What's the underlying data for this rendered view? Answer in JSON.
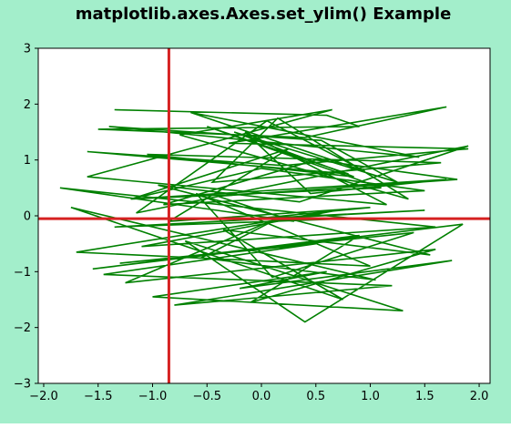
{
  "figure": {
    "background": "#a3eecb",
    "title": "matplotlib.axes.Axes.set_ylim() Example"
  },
  "chart_data": {
    "type": "line",
    "title": "matplotlib.axes.Axes.set_ylim() Example",
    "xlabel": "",
    "ylabel": "",
    "xlim": [
      -2.05,
      2.1
    ],
    "ylim": [
      -3,
      3
    ],
    "xticks": [
      -2.0,
      -1.5,
      -1.0,
      -0.5,
      0.0,
      0.5,
      1.0,
      1.5,
      2.0
    ],
    "xtick_labels": [
      "−2.0",
      "−1.5",
      "−1.0",
      "−0.5",
      "0.0",
      "0.5",
      "1.0",
      "1.5",
      "2.0"
    ],
    "yticks": [
      -3,
      -2,
      -1,
      0,
      1,
      2,
      3
    ],
    "ytick_labels": [
      "−3",
      "−2",
      "−1",
      "0",
      "1",
      "2",
      "3"
    ],
    "grid": false,
    "series": [
      {
        "color": "#008000",
        "x": [
          -1.35,
          0.6,
          0.9,
          -1.5,
          0.4,
          1.7,
          -0.3,
          1.9,
          0.2,
          -1.6,
          0.8,
          -0.5,
          1.1,
          -1.2,
          0.0,
          1.5,
          -0.9,
          0.5,
          1.8,
          -0.4,
          0.3,
          -1.85,
          1.6,
          -1.1,
          0.7,
          -1.7,
          1.0,
          -0.6,
          0.1,
          1.4,
          -1.3,
          0.5,
          -1.45,
          1.2,
          -0.8,
          1.75,
          -0.2,
          0.6,
          -1.0,
          1.3,
          -0.7,
          0.4,
          1.85,
          -1.55,
          0.9,
          -0.1,
          1.6,
          -1.25,
          0.2,
          -0.55,
          1.05,
          -1.75,
          0.75,
          -0.35,
          1.55,
          -0.95,
          0.35,
          1.9,
          -1.15,
          0.05,
          0.95,
          -0.65,
          1.45,
          -1.4,
          0.55,
          1.25,
          -0.25,
          0.85,
          -1.05,
          1.65,
          -0.45,
          0.15,
          1.35,
          -0.75,
          0.65,
          -1.6,
          1.15,
          -0.15,
          0.45,
          1.7,
          -1.2,
          0.25,
          -0.85,
          1.0,
          -0.05,
          1.5,
          -1.35,
          0.8
        ],
        "y": [
          1.9,
          1.8,
          1.6,
          1.55,
          1.4,
          1.95,
          1.3,
          1.2,
          0.9,
          1.15,
          0.75,
          1.6,
          0.5,
          0.3,
          0.85,
          0.45,
          0.2,
          1.0,
          0.65,
          0.35,
          -0.1,
          0.5,
          -0.2,
          -0.55,
          0.1,
          -0.65,
          -0.9,
          0.4,
          -1.1,
          -0.3,
          -0.85,
          -0.5,
          -1.05,
          -1.25,
          -1.6,
          -0.8,
          -1.3,
          -1.0,
          -1.45,
          -1.7,
          -0.45,
          -1.9,
          -0.15,
          -0.95,
          -0.35,
          -1.55,
          -0.6,
          -1.2,
          0.0,
          -0.75,
          -1.15,
          0.15,
          -1.5,
          -0.25,
          -0.7,
          0.55,
          0.25,
          1.25,
          0.05,
          1.7,
          0.8,
          1.85,
          1.05,
          1.6,
          1.35,
          0.6,
          1.5,
          0.7,
          1.1,
          0.95,
          0.6,
          1.75,
          0.3,
          1.45,
          1.9,
          0.7,
          0.2,
          1.5,
          0.4,
          0.65,
          0.3,
          1.2,
          -0.1,
          0.15,
          -0.05,
          0.1,
          -0.2,
          -0.05
        ]
      }
    ],
    "hlines": [
      {
        "y": -0.05,
        "color": "#d62222"
      }
    ],
    "vlines": [
      {
        "x": -0.85,
        "color": "#d62222"
      }
    ]
  }
}
